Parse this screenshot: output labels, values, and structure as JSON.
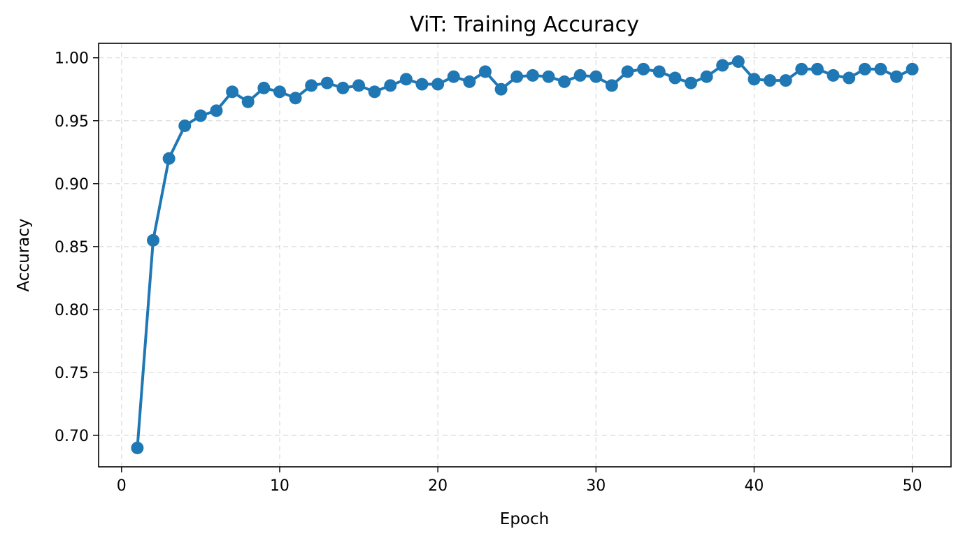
{
  "chart_data": {
    "type": "line",
    "title": "ViT: Training Accuracy",
    "xlabel": "Epoch",
    "ylabel": "Accuracy",
    "xlim": [
      -1.45,
      52.45
    ],
    "ylim": [
      0.675,
      1.0115
    ],
    "xticks": [
      0,
      10,
      20,
      30,
      40,
      50
    ],
    "xtick_labels": [
      "0",
      "10",
      "20",
      "30",
      "40",
      "50"
    ],
    "yticks": [
      0.7,
      0.75,
      0.8,
      0.85,
      0.9,
      0.95,
      1.0
    ],
    "ytick_labels": [
      "0.70",
      "0.75",
      "0.80",
      "0.85",
      "0.90",
      "0.95",
      "1.00"
    ],
    "grid": true,
    "color": "#1f77b4",
    "x": [
      1,
      2,
      3,
      4,
      5,
      6,
      7,
      8,
      9,
      10,
      11,
      12,
      13,
      14,
      15,
      16,
      17,
      18,
      19,
      20,
      21,
      22,
      23,
      24,
      25,
      26,
      27,
      28,
      29,
      30,
      31,
      32,
      33,
      34,
      35,
      36,
      37,
      38,
      39,
      40,
      41,
      42,
      43,
      44,
      45,
      46,
      47,
      48,
      49,
      50
    ],
    "values": [
      0.69,
      0.855,
      0.92,
      0.946,
      0.954,
      0.958,
      0.973,
      0.965,
      0.976,
      0.973,
      0.968,
      0.978,
      0.98,
      0.976,
      0.978,
      0.973,
      0.978,
      0.983,
      0.979,
      0.979,
      0.985,
      0.981,
      0.989,
      0.975,
      0.985,
      0.986,
      0.985,
      0.981,
      0.986,
      0.985,
      0.978,
      0.989,
      0.991,
      0.989,
      0.984,
      0.98,
      0.985,
      0.994,
      0.997,
      0.983,
      0.982,
      0.982,
      0.991,
      0.991,
      0.986,
      0.984,
      0.991,
      0.991,
      0.985,
      0.991
    ]
  }
}
